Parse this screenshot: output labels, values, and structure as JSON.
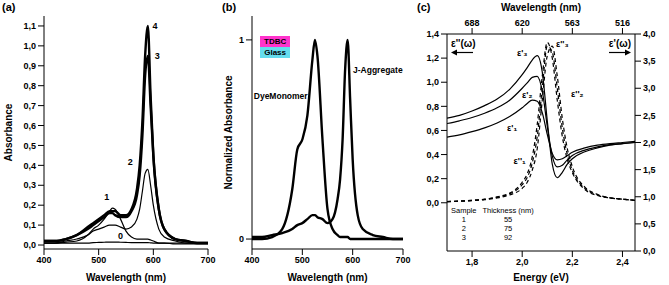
{
  "chart_data": [
    {
      "panel": "(a)",
      "type": "line",
      "xlabel": "Wavelength (nm)",
      "ylabel": "Absorbance",
      "x": [
        400,
        420,
        440,
        460,
        480,
        490,
        500,
        510,
        520,
        525,
        530,
        540,
        550,
        560,
        570,
        575,
        580,
        585,
        590,
        595,
        600,
        610,
        620,
        640,
        660,
        680,
        700
      ],
      "series": [
        {
          "name": "0",
          "color": "#000000",
          "line_style": "solid",
          "values": [
            0.01,
            0.01,
            0.01,
            0.01,
            0.01,
            0.012,
            0.013,
            0.014,
            0.015,
            0.015,
            0.015,
            0.014,
            0.013,
            0.012,
            0.012,
            0.012,
            0.012,
            0.012,
            0.012,
            0.011,
            0.01,
            0.01,
            0.01,
            0.01,
            0.01,
            0.01,
            0.01
          ]
        },
        {
          "name": "1",
          "color": "#000000",
          "line_style": "solid",
          "values": [
            0.01,
            0.01,
            0.015,
            0.02,
            0.05,
            0.08,
            0.1,
            0.13,
            0.17,
            0.185,
            0.18,
            0.13,
            0.07,
            0.04,
            0.03,
            0.03,
            0.03,
            0.03,
            0.03,
            0.025,
            0.02,
            0.01,
            0.01,
            0.005,
            0.005,
            0.005,
            0.005
          ]
        },
        {
          "name": "2",
          "color": "#000000",
          "line_style": "solid",
          "values": [
            0.01,
            0.01,
            0.02,
            0.03,
            0.05,
            0.07,
            0.08,
            0.09,
            0.1,
            0.1,
            0.1,
            0.09,
            0.08,
            0.09,
            0.13,
            0.18,
            0.27,
            0.36,
            0.38,
            0.3,
            0.2,
            0.08,
            0.04,
            0.02,
            0.01,
            0.01,
            0.01
          ]
        },
        {
          "name": "3",
          "color": "#000000",
          "line_style": "thick",
          "values": [
            0.02,
            0.02,
            0.03,
            0.05,
            0.08,
            0.1,
            0.12,
            0.14,
            0.16,
            0.16,
            0.15,
            0.14,
            0.14,
            0.17,
            0.25,
            0.35,
            0.55,
            0.85,
            0.95,
            0.7,
            0.45,
            0.18,
            0.08,
            0.03,
            0.02,
            0.01,
            0.01
          ]
        },
        {
          "name": "4",
          "color": "#000000",
          "line_style": "thick",
          "values": [
            0.02,
            0.02,
            0.03,
            0.05,
            0.09,
            0.11,
            0.13,
            0.15,
            0.17,
            0.17,
            0.17,
            0.15,
            0.15,
            0.18,
            0.28,
            0.4,
            0.62,
            0.95,
            1.1,
            0.75,
            0.45,
            0.18,
            0.08,
            0.03,
            0.02,
            0.01,
            0.01
          ]
        }
      ],
      "xlim": [
        400,
        700
      ],
      "xticks": [
        400,
        500,
        600,
        700
      ],
      "ylim": [
        -0.02,
        1.15
      ],
      "yticks": [
        {
          "value": 0,
          "label": "0,0"
        },
        {
          "value": 0.1,
          "label": "0,1"
        },
        {
          "value": 0.2,
          "label": "0,2"
        },
        {
          "value": 0.3,
          "label": "0,3"
        },
        {
          "value": 0.4,
          "label": "0,4"
        },
        {
          "value": 0.5,
          "label": "0,5"
        },
        {
          "value": 0.6,
          "label": "0,6"
        },
        {
          "value": 0.7,
          "label": "0,7"
        },
        {
          "value": 0.8,
          "label": "0,8"
        },
        {
          "value": 0.9,
          "label": "0,9"
        },
        {
          "value": 1,
          "label": "1,0"
        },
        {
          "value": 1.1,
          "label": "1,1"
        }
      ],
      "annotations": [
        {
          "text": "0",
          "x": 540,
          "y": 0.045
        },
        {
          "text": "1",
          "x": 515,
          "y": 0.24
        },
        {
          "text": "2",
          "x": 558,
          "y": 0.42
        },
        {
          "text": "3",
          "x": 607,
          "y": 0.95
        },
        {
          "text": "4",
          "x": 603,
          "y": 1.1
        }
      ]
    },
    {
      "panel": "(b)",
      "type": "line",
      "xlabel": "Wavelength (nm)",
      "ylabel": "Normalized Absorbance",
      "x": [
        400,
        420,
        440,
        460,
        480,
        490,
        500,
        510,
        520,
        525,
        530,
        540,
        550,
        560,
        570,
        575,
        580,
        585,
        590,
        595,
        600,
        610,
        620,
        640,
        660,
        680,
        700
      ],
      "series": [
        {
          "name": "DyeMonomer",
          "color": "#000000",
          "line_style": "thick",
          "values": [
            0,
            0,
            0.01,
            0.05,
            0.25,
            0.45,
            0.5,
            0.62,
            0.9,
            1.0,
            0.92,
            0.5,
            0.15,
            0.05,
            0.02,
            0.01,
            0.01,
            0.01,
            0.01,
            0,
            0,
            0,
            0,
            0,
            0,
            0,
            0
          ]
        },
        {
          "name": "J-Aggregate",
          "color": "#000000",
          "line_style": "thick",
          "values": [
            0.01,
            0.01,
            0.02,
            0.03,
            0.05,
            0.07,
            0.08,
            0.1,
            0.12,
            0.12,
            0.11,
            0.1,
            0.08,
            0.1,
            0.2,
            0.3,
            0.5,
            0.85,
            1.0,
            0.7,
            0.4,
            0.12,
            0.05,
            0.02,
            0.01,
            0,
            0
          ]
        }
      ],
      "xlim": [
        400,
        700
      ],
      "xticks": [
        400,
        500,
        600,
        700
      ],
      "ylim": [
        -0.05,
        1.12
      ],
      "yticks": [
        0,
        1
      ],
      "annotations": [
        {
          "text": "DyeMonomer",
          "x": 457,
          "y": 0.72
        },
        {
          "text": "J-Aggregate",
          "x": 650,
          "y": 0.85
        }
      ],
      "inset": [
        {
          "text": "TDBC",
          "color": "#ff33cc"
        },
        {
          "text": "Glass",
          "color": "#66ddee"
        }
      ]
    },
    {
      "panel": "(c)",
      "type": "line",
      "xlabel": "Energy (eV)",
      "x2label": "Wavelength (nm)",
      "ylabel": "ε''(ω)",
      "y2label": "ε'(ω)",
      "x": [
        1.7,
        1.75,
        1.8,
        1.85,
        1.9,
        1.95,
        2.0,
        2.02,
        2.04,
        2.06,
        2.08,
        2.1,
        2.12,
        2.14,
        2.16,
        2.18,
        2.2,
        2.25,
        2.3,
        2.35,
        2.4,
        2.45
      ],
      "series": [
        {
          "name": "ε'₁",
          "color": "#000000",
          "line_style": "solid",
          "axis": "y2",
          "values": [
            2.1,
            2.14,
            2.2,
            2.27,
            2.36,
            2.48,
            2.64,
            2.72,
            2.78,
            2.76,
            2.55,
            2.15,
            1.8,
            1.68,
            1.7,
            1.76,
            1.82,
            1.9,
            1.95,
            1.98,
            2.0,
            2.02
          ]
        },
        {
          "name": "ε'₂",
          "color": "#000000",
          "line_style": "solid",
          "axis": "y2",
          "values": [
            2.35,
            2.4,
            2.46,
            2.54,
            2.64,
            2.78,
            3.0,
            3.1,
            3.2,
            3.22,
            2.95,
            2.3,
            1.75,
            1.55,
            1.58,
            1.68,
            1.76,
            1.86,
            1.92,
            1.96,
            1.98,
            2.0
          ]
        },
        {
          "name": "ε'₃",
          "color": "#000000",
          "line_style": "solid",
          "axis": "y2",
          "values": [
            2.45,
            2.5,
            2.58,
            2.68,
            2.8,
            2.98,
            3.25,
            3.38,
            3.52,
            3.6,
            3.3,
            2.4,
            1.6,
            1.35,
            1.45,
            1.6,
            1.7,
            1.83,
            1.9,
            1.95,
            1.98,
            2.0
          ]
        },
        {
          "name": "ε''₁",
          "color": "#000000",
          "line_style": "dashed",
          "values": [
            0.01,
            0.012,
            0.018,
            0.025,
            0.04,
            0.065,
            0.12,
            0.17,
            0.27,
            0.45,
            0.85,
            1.22,
            1.3,
            1.05,
            0.7,
            0.45,
            0.3,
            0.13,
            0.07,
            0.04,
            0.03,
            0.02
          ]
        },
        {
          "name": "ε''₂",
          "color": "#000000",
          "line_style": "dashed",
          "values": [
            0.01,
            0.014,
            0.02,
            0.028,
            0.045,
            0.075,
            0.15,
            0.21,
            0.33,
            0.55,
            0.95,
            1.3,
            1.25,
            0.95,
            0.62,
            0.4,
            0.27,
            0.12,
            0.065,
            0.04,
            0.03,
            0.02
          ]
        },
        {
          "name": "ε''₃",
          "color": "#000000",
          "line_style": "dashed",
          "values": [
            0.01,
            0.015,
            0.02,
            0.03,
            0.05,
            0.08,
            0.17,
            0.24,
            0.38,
            0.65,
            1.05,
            1.33,
            1.2,
            0.85,
            0.55,
            0.36,
            0.25,
            0.11,
            0.06,
            0.04,
            0.03,
            0.02
          ]
        }
      ],
      "xlim": [
        1.7,
        2.45
      ],
      "xticks": [
        {
          "value": 1.8,
          "label": "1,8"
        },
        {
          "value": 2,
          "label": "2,0"
        },
        {
          "value": 2.2,
          "label": "2,2"
        },
        {
          "value": 2.4,
          "label": "2,4"
        }
      ],
      "x2ticks": [
        {
          "value": 1.8,
          "label": "688"
        },
        {
          "value": 2,
          "label": "620"
        },
        {
          "value": 2.2,
          "label": "563"
        },
        {
          "value": 2.4,
          "label": "516"
        }
      ],
      "ylim": [
        -0.4,
        1.4
      ],
      "yticks": [
        {
          "value": 0,
          "label": "0,0"
        },
        {
          "value": 0.2,
          "label": "0,2"
        },
        {
          "value": 0.4,
          "label": "0,4"
        },
        {
          "value": 0.6,
          "label": "0,6"
        },
        {
          "value": 0.8,
          "label": "0,8"
        },
        {
          "value": 1,
          "label": "1,0"
        },
        {
          "value": 1.2,
          "label": "1,2"
        },
        {
          "value": 1.4,
          "label": "1,4"
        }
      ],
      "y2lim": [
        0,
        4
      ],
      "y2ticks": [
        {
          "value": 0,
          "label": "0,0"
        },
        {
          "value": 0.5,
          "label": "0,5"
        },
        {
          "value": 1,
          "label": "1,0"
        },
        {
          "value": 1.5,
          "label": "1,5"
        },
        {
          "value": 2,
          "label": "2,0"
        },
        {
          "value": 2.5,
          "label": "2,5"
        },
        {
          "value": 3,
          "label": "3,0"
        },
        {
          "value": 3.5,
          "label": "3,5"
        },
        {
          "value": 4,
          "label": "4,0"
        }
      ],
      "annotations": [
        {
          "text": "ε'₃",
          "x": 2.0,
          "y": 3.65,
          "axis": "y2"
        },
        {
          "text": "ε'₂",
          "x": 2.02,
          "y": 2.87,
          "axis": "y2"
        },
        {
          "text": "ε'₁",
          "x": 1.96,
          "y": 2.28,
          "axis": "y2"
        },
        {
          "text": "ε''₃",
          "x": 2.16,
          "y": 1.32
        },
        {
          "text": "ε''₂",
          "x": 2.22,
          "y": 0.9
        },
        {
          "text": "ε''₁",
          "x": 1.99,
          "y": 0.35
        }
      ],
      "table": {
        "columns": [
          "Sample",
          "Thickness (nm)"
        ],
        "rows": [
          [
            1,
            55
          ],
          [
            2,
            75
          ],
          [
            3,
            92
          ]
        ]
      }
    }
  ]
}
